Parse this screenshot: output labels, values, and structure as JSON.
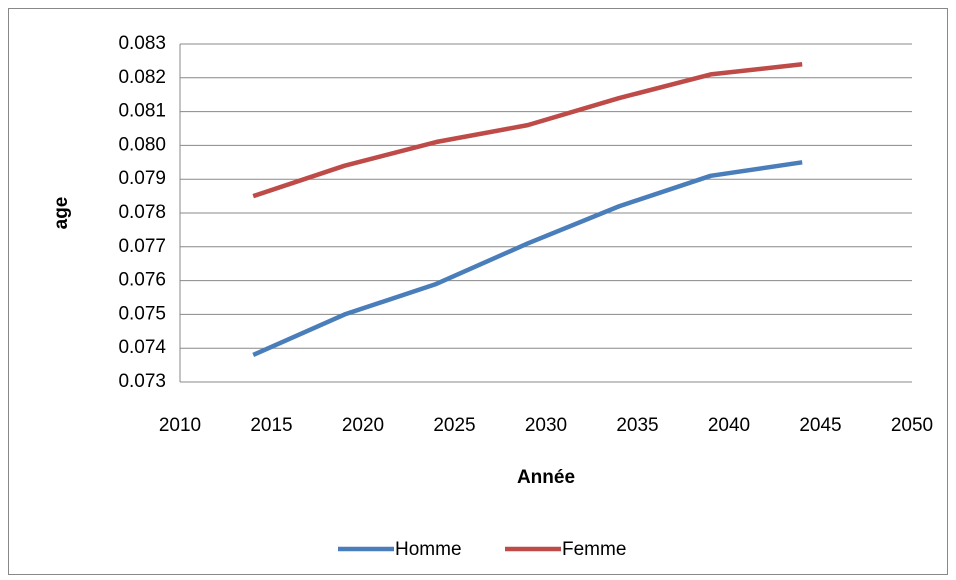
{
  "chart_data": {
    "type": "line",
    "x_label": "Année",
    "y_label": "age",
    "x": [
      2014,
      2019,
      2024,
      2029,
      2034,
      2039,
      2044
    ],
    "series": [
      {
        "name": "Homme",
        "color": "#4a7ebb",
        "values": [
          0.0738,
          0.075,
          0.0759,
          0.0771,
          0.0782,
          0.0791,
          0.0795
        ]
      },
      {
        "name": "Femme",
        "color": "#be4b48",
        "values": [
          0.0785,
          0.0794,
          0.0801,
          0.0806,
          0.0814,
          0.0821,
          0.0824
        ]
      }
    ],
    "xlim": [
      2010,
      2050
    ],
    "xticks": [
      2010,
      2015,
      2020,
      2025,
      2030,
      2035,
      2040,
      2045,
      2050
    ],
    "ylim": [
      0.073,
      0.083
    ],
    "yticks": [
      0.073,
      0.074,
      0.075,
      0.076,
      0.077,
      0.078,
      0.079,
      {
        "value": 0.08,
        "label": "0.080"
      },
      0.081,
      0.082,
      0.083
    ],
    "grid": true,
    "legend": "bottom"
  }
}
